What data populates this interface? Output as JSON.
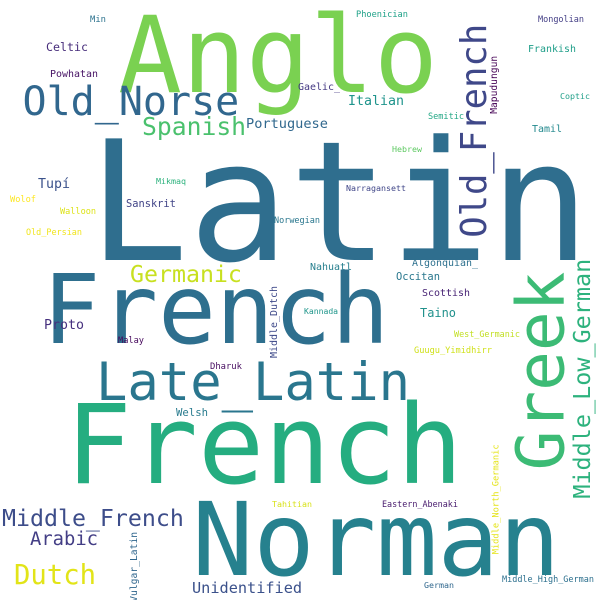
{
  "words": [
    {
      "text": "Latin",
      "color": "#2f6e8e",
      "rotated": false
    },
    {
      "text": "French",
      "color": "#25ad80",
      "rotated": false
    },
    {
      "text": "French",
      "color": "#2e6f8e",
      "rotated": false
    },
    {
      "text": "Norman",
      "color": "#26818e",
      "rotated": false
    },
    {
      "text": "Anglo",
      "color": "#7ad151",
      "rotated": false
    },
    {
      "text": "Greek",
      "color": "#3cbb75",
      "rotated": true
    },
    {
      "text": "Late_Latin",
      "color": "#2a768e",
      "rotated": false
    },
    {
      "text": "Old_Norse",
      "color": "#31678e",
      "rotated": false
    },
    {
      "text": "Old_French",
      "color": "#3f4889",
      "rotated": true
    },
    {
      "text": "Middle_Low_German",
      "color": "#2db27d",
      "rotated": true
    },
    {
      "text": "Spanish",
      "color": "#4ac16d",
      "rotated": false
    },
    {
      "text": "Germanic",
      "color": "#c8e020",
      "rotated": false
    },
    {
      "text": "Middle_French",
      "color": "#3d4d8a",
      "rotated": false
    },
    {
      "text": "Dutch",
      "color": "#e2e418",
      "rotated": false
    },
    {
      "text": "Arabic",
      "color": "#433e85",
      "rotated": false
    },
    {
      "text": "Unidentified",
      "color": "#3b518b",
      "rotated": false
    },
    {
      "text": "Taino",
      "color": "#21918c",
      "rotated": false
    },
    {
      "text": "Italian",
      "color": "#1f948c",
      "rotated": false
    },
    {
      "text": "Portuguese",
      "color": "#31688e",
      "rotated": false
    },
    {
      "text": "Proto",
      "color": "#46307e",
      "rotated": false
    },
    {
      "text": "Tupí",
      "color": "#3b528b",
      "rotated": false
    },
    {
      "text": "Celtic",
      "color": "#472d7b",
      "rotated": false
    },
    {
      "text": "Powhatan",
      "color": "#471365",
      "rotated": false
    },
    {
      "text": "Min",
      "color": "#2c728e",
      "rotated": false
    },
    {
      "text": "Phoenician",
      "color": "#1fa188",
      "rotated": false
    },
    {
      "text": "Mongolian",
      "color": "#433e85",
      "rotated": false
    },
    {
      "text": "Frankish",
      "color": "#1f9e89",
      "rotated": false
    },
    {
      "text": "Coptic",
      "color": "#1f9f88",
      "rotated": false
    },
    {
      "text": "Mapudungun",
      "color": "#440154",
      "rotated": true
    },
    {
      "text": "Gaelic_",
      "color": "#443983",
      "rotated": false
    },
    {
      "text": "Semitic",
      "color": "#22a785",
      "rotated": false
    },
    {
      "text": "Tamil",
      "color": "#23898e",
      "rotated": false
    },
    {
      "text": "Hebrew",
      "color": "#5ec962",
      "rotated": false
    },
    {
      "text": "Mikmaq",
      "color": "#2db27d",
      "rotated": false
    },
    {
      "text": "Narragansett",
      "color": "#404688",
      "rotated": false
    },
    {
      "text": "Wolof",
      "color": "#fde725",
      "rotated": false
    },
    {
      "text": "Walloon",
      "color": "#dde318",
      "rotated": false
    },
    {
      "text": "Sanskrit",
      "color": "#414487",
      "rotated": false
    },
    {
      "text": "Old_Persian",
      "color": "#f1e51d",
      "rotated": false
    },
    {
      "text": "Norwegian",
      "color": "#2a778e",
      "rotated": false
    },
    {
      "text": "Nahuatl",
      "color": "#277f8e",
      "rotated": false
    },
    {
      "text": "Algonquian_",
      "color": "#2d708e",
      "rotated": false
    },
    {
      "text": "Occitan",
      "color": "#2a788e",
      "rotated": false
    },
    {
      "text": "Scottish",
      "color": "#482475",
      "rotated": false
    },
    {
      "text": "Middle_Dutch",
      "color": "#3e4989",
      "rotated": true
    },
    {
      "text": "Kannada",
      "color": "#1f968b",
      "rotated": false
    },
    {
      "text": "Malay",
      "color": "#46085c",
      "rotated": false
    },
    {
      "text": "West_Germanic",
      "color": "#c2df23",
      "rotated": false
    },
    {
      "text": "Guugu_Yimidhirr",
      "color": "#d0e11c",
      "rotated": false
    },
    {
      "text": "Dharuk",
      "color": "#470d60",
      "rotated": false
    },
    {
      "text": "Welsh",
      "color": "#297b8e",
      "rotated": false
    },
    {
      "text": "Middle_North_Germanic",
      "color": "#e5e419",
      "rotated": true
    },
    {
      "text": "Tahitian",
      "color": "#d8e219",
      "rotated": false
    },
    {
      "text": "Eastern_Abenaki",
      "color": "#481b6d",
      "rotated": false
    },
    {
      "text": "Vulgar_Latin",
      "color": "#31678e",
      "rotated": true
    },
    {
      "text": "German",
      "color": "#31688e",
      "rotated": false
    },
    {
      "text": "Middle_High_German",
      "color": "#2d708e",
      "rotated": false
    }
  ]
}
